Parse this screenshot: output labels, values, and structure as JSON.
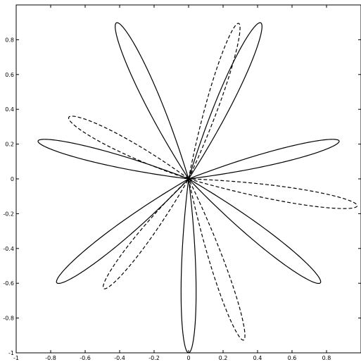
{
  "chart_data": {
    "type": "line",
    "title": "",
    "xlabel": "",
    "ylabel": "",
    "xlim": [
      -1,
      1
    ],
    "ylim": [
      -1,
      1
    ],
    "grid": false,
    "legend": "none",
    "x_ticks": [
      "-1",
      "-0.8",
      "-0.6",
      "-0.4",
      "-0.2",
      "0",
      "0.2",
      "0.4",
      "0.6",
      "0.8"
    ],
    "y_ticks": [
      "-1",
      "-0.8",
      "-0.6",
      "-0.4",
      "-0.2",
      "0",
      "0.2",
      "0.4",
      "0.6",
      "0.8"
    ],
    "series": [
      {
        "style": "solid",
        "color": "#000000",
        "petals": [
          {
            "tip_angle_deg": 14,
            "length": 0.9,
            "half_width_deg": 7
          },
          {
            "tip_angle_deg": 65,
            "length": 0.99,
            "half_width_deg": 8
          },
          {
            "tip_angle_deg": 115,
            "length": 0.99,
            "half_width_deg": 8
          },
          {
            "tip_angle_deg": 166,
            "length": 0.9,
            "half_width_deg": 7
          },
          {
            "tip_angle_deg": 218,
            "length": 0.97,
            "half_width_deg": 8
          },
          {
            "tip_angle_deg": 270,
            "length": 1.0,
            "half_width_deg": 7
          },
          {
            "tip_angle_deg": 322,
            "length": 0.97,
            "half_width_deg": 8
          }
        ]
      },
      {
        "style": "dashed",
        "color": "#000000",
        "petals": [
          {
            "tip_angle_deg": 351,
            "length": 0.99,
            "half_width_deg": 7
          },
          {
            "tip_angle_deg": 72,
            "length": 0.94,
            "half_width_deg": 7
          },
          {
            "tip_angle_deg": 153,
            "length": 0.78,
            "half_width_deg": 9
          },
          {
            "tip_angle_deg": 232,
            "length": 0.8,
            "half_width_deg": 8
          },
          {
            "tip_angle_deg": 289,
            "length": 0.98,
            "half_width_deg": 7
          }
        ]
      }
    ]
  }
}
